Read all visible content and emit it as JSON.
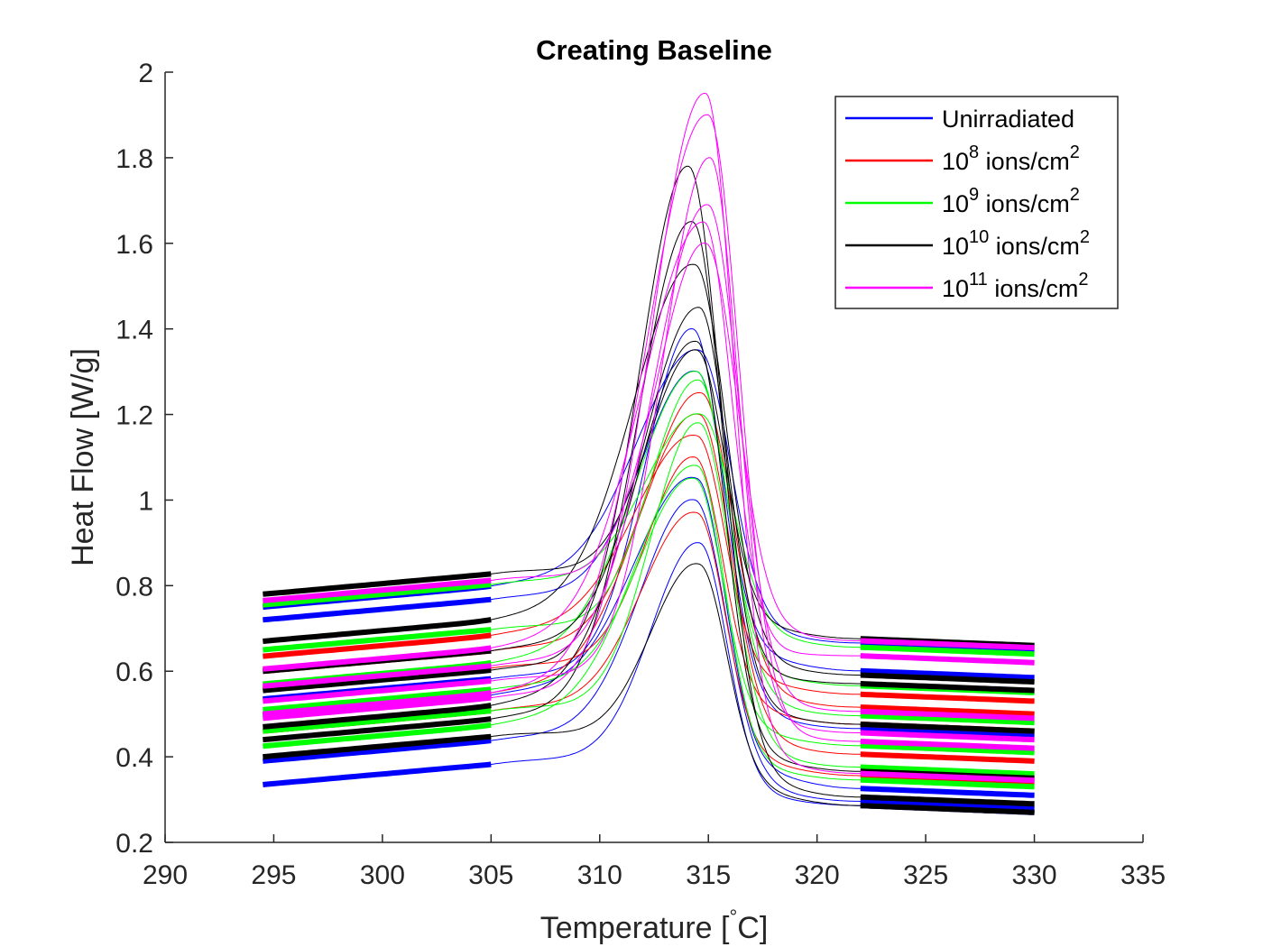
{
  "chart_data": {
    "type": "line",
    "title": "Creating Baseline",
    "xlabel": {
      "pre": "Temperature [",
      "sup": "°",
      "post": "C]"
    },
    "ylabel": "Heat Flow [W/g]",
    "xlim": [
      290,
      335
    ],
    "ylim": [
      0.2,
      2
    ],
    "xticks": [
      "290",
      "295",
      "300",
      "305",
      "310",
      "315",
      "320",
      "325",
      "330",
      "335"
    ],
    "yticks": [
      "0.2",
      "0.4",
      "0.6",
      "0.8",
      "1",
      "1.2",
      "1.4",
      "1.6",
      "1.8",
      "2"
    ],
    "legend_position": "top-right",
    "baseline_fit_ranges": {
      "pre_peak": [
        294.5,
        305
      ],
      "post_peak": [
        322,
        330
      ]
    },
    "series": [
      {
        "name": "Unirradiated",
        "name_base": "Unirradiated",
        "color": "#0000ff",
        "curves": [
          {
            "y_start": 0.335,
            "y_end": 0.27,
            "peak_x": 314.6,
            "peak_y": 0.9
          },
          {
            "y_start": 0.39,
            "y_end": 0.28,
            "peak_x": 314.4,
            "peak_y": 1.0
          },
          {
            "y_start": 0.495,
            "y_end": 0.31,
            "peak_x": 314.5,
            "peak_y": 1.05
          },
          {
            "y_start": 0.535,
            "y_end": 0.45,
            "peak_x": 314.3,
            "peak_y": 1.4
          },
          {
            "y_start": 0.72,
            "y_end": 0.585,
            "peak_x": 314.5,
            "peak_y": 1.3
          },
          {
            "y_start": 0.75,
            "y_end": 0.65,
            "peak_x": 314.6,
            "peak_y": 1.35
          }
        ]
      },
      {
        "name": "10^8 ions/cm^2",
        "name_base": "10",
        "name_exp": "8",
        "name_unit": " ions/cm",
        "name_unit_exp": "2",
        "color": "#ff0000",
        "curves": [
          {
            "y_start": 0.46,
            "y_end": 0.34,
            "peak_x": 314.5,
            "peak_y": 0.97
          },
          {
            "y_start": 0.5,
            "y_end": 0.39,
            "peak_x": 314.6,
            "peak_y": 1.2
          },
          {
            "y_start": 0.56,
            "y_end": 0.46,
            "peak_x": 314.4,
            "peak_y": 1.1
          },
          {
            "y_start": 0.6,
            "y_end": 0.5,
            "peak_x": 314.7,
            "peak_y": 1.25
          },
          {
            "y_start": 0.635,
            "y_end": 0.53,
            "peak_x": 314.5,
            "peak_y": 1.15
          }
        ]
      },
      {
        "name": "10^9 ions/cm^2",
        "name_base": "10",
        "name_exp": "9",
        "name_unit": " ions/cm",
        "name_unit_exp": "2",
        "color": "#00ff00",
        "curves": [
          {
            "y_start": 0.425,
            "y_end": 0.33,
            "peak_x": 314.5,
            "peak_y": 1.08
          },
          {
            "y_start": 0.46,
            "y_end": 0.36,
            "peak_x": 314.6,
            "peak_y": 1.18
          },
          {
            "y_start": 0.51,
            "y_end": 0.41,
            "peak_x": 314.4,
            "peak_y": 1.05
          },
          {
            "y_start": 0.57,
            "y_end": 0.48,
            "peak_x": 314.5,
            "peak_y": 1.3
          },
          {
            "y_start": 0.65,
            "y_end": 0.55,
            "peak_x": 314.6,
            "peak_y": 1.28
          },
          {
            "y_start": 0.755,
            "y_end": 0.64,
            "peak_x": 314.7,
            "peak_y": 1.2
          }
        ]
      },
      {
        "name": "10^10 ions/cm^2",
        "name_base": "10",
        "name_exp": "10",
        "name_unit": " ions/cm",
        "name_unit_exp": "2",
        "color": "#000000",
        "curves": [
          {
            "y_start": 0.4,
            "y_end": 0.27,
            "peak_x": 314.6,
            "peak_y": 0.85
          },
          {
            "y_start": 0.44,
            "y_end": 0.29,
            "peak_x": 314.3,
            "peak_y": 1.65
          },
          {
            "y_start": 0.47,
            "y_end": 0.35,
            "peak_x": 314.5,
            "peak_y": 1.37
          },
          {
            "y_start": 0.555,
            "y_end": 0.46,
            "peak_x": 314.1,
            "peak_y": 1.78
          },
          {
            "y_start": 0.6,
            "y_end": 0.555,
            "peak_x": 314.6,
            "peak_y": 1.45
          },
          {
            "y_start": 0.67,
            "y_end": 0.575,
            "peak_x": 314.4,
            "peak_y": 1.55
          },
          {
            "y_start": 0.78,
            "y_end": 0.66,
            "peak_x": 314.5,
            "peak_y": 1.35
          }
        ]
      },
      {
        "name": "10^11 ions/cm^2",
        "name_base": "10",
        "name_exp": "11",
        "name_unit": " ions/cm",
        "name_unit_exp": "2",
        "color": "#ff00ff",
        "curves": [
          {
            "y_start": 0.49,
            "y_end": 0.345,
            "peak_x": 314.9,
            "peak_y": 1.95
          },
          {
            "y_start": 0.5,
            "y_end": 0.42,
            "peak_x": 315.0,
            "peak_y": 1.9
          },
          {
            "y_start": 0.53,
            "y_end": 0.44,
            "peak_x": 315.1,
            "peak_y": 1.8
          },
          {
            "y_start": 0.565,
            "y_end": 0.49,
            "peak_x": 315.0,
            "peak_y": 1.69
          },
          {
            "y_start": 0.605,
            "y_end": 0.62,
            "peak_x": 314.8,
            "peak_y": 1.65
          },
          {
            "y_start": 0.765,
            "y_end": 0.655,
            "peak_x": 314.9,
            "peak_y": 1.6
          }
        ]
      }
    ]
  }
}
